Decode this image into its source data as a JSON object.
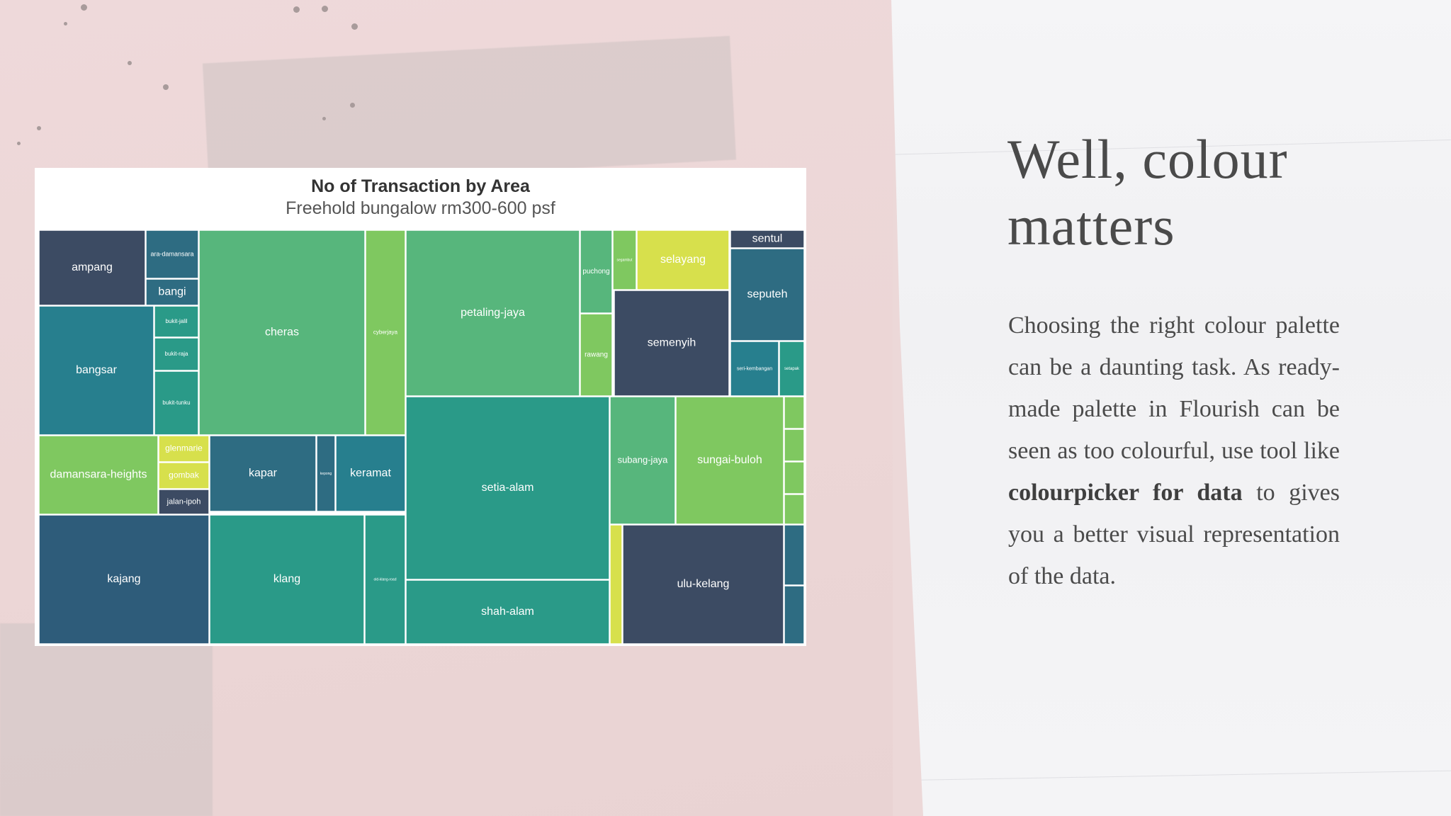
{
  "slide": {
    "heading": "Well, colour matters",
    "body_before": "Choosing the right colour palette can be a daunting task. As ready-made palette in Flourish can be seen as too colourful, use tool like ",
    "body_bold": "colourpicker for data",
    "body_after": " to gives you a better visual representation of the data."
  },
  "colors": {
    "dark_slate": "#3c4b63",
    "slate_teal": "#2e6c82",
    "teal_blue": "#277f8e",
    "teal": "#2a9a88",
    "green": "#57b67c",
    "light_green": "#7fc860",
    "yellow": "#d7e04c"
  },
  "chart_data": {
    "type": "treemap",
    "title": "No of Transaction by Area",
    "subtitle": "Freehold bungalow rm300-600 psf",
    "cells": [
      {
        "name": "ampang",
        "color": "#3c4b63"
      },
      {
        "name": "ara-damansara",
        "color": "#2e6c82"
      },
      {
        "name": "bangi",
        "color": "#2e6c82"
      },
      {
        "name": "bangsar",
        "color": "#277f8e"
      },
      {
        "name": "bukit-jalil",
        "color": "#2a9a88"
      },
      {
        "name": "bukit-raja",
        "color": "#2a9a88"
      },
      {
        "name": "bukit-tunku",
        "color": "#2a9a88"
      },
      {
        "name": "cheras",
        "color": "#57b67c"
      },
      {
        "name": "cyberjaya",
        "color": "#7fc860"
      },
      {
        "name": "damansara-heights",
        "color": "#7fc860"
      },
      {
        "name": "glenmarie",
        "color": "#d7e04c"
      },
      {
        "name": "gombak",
        "color": "#d7e04c"
      },
      {
        "name": "jalan-ipoh",
        "color": "#3c4b63"
      },
      {
        "name": "kapar",
        "color": "#2e6c82"
      },
      {
        "name": "kepong",
        "color": "#2e6c82"
      },
      {
        "name": "keramat",
        "color": "#277f8e"
      },
      {
        "name": "kajang",
        "color": "#2e5c7a"
      },
      {
        "name": "klang",
        "color": "#2a9a88"
      },
      {
        "name": "old-klang-road",
        "color": "#2a9a88"
      },
      {
        "name": "petaling-jaya",
        "color": "#57b67c"
      },
      {
        "name": "puchong",
        "color": "#57b67c"
      },
      {
        "name": "rawang",
        "color": "#7fc860"
      },
      {
        "name": "segambut",
        "color": "#7fc860"
      },
      {
        "name": "selayang",
        "color": "#d7e04c"
      },
      {
        "name": "semenyih",
        "color": "#3c4b63"
      },
      {
        "name": "sentul",
        "color": "#3c4b63"
      },
      {
        "name": "seputeh",
        "color": "#2e6c82"
      },
      {
        "name": "seri-kembangan",
        "color": "#277f8e"
      },
      {
        "name": "setapak",
        "color": "#2a9a88"
      },
      {
        "name": "setia-alam",
        "color": "#2a9a88"
      },
      {
        "name": "shah-alam",
        "color": "#2a9a88"
      },
      {
        "name": "subang-jaya",
        "color": "#57b67c"
      },
      {
        "name": "sungai-buloh",
        "color": "#7fc860"
      },
      {
        "name": "ulu-kelang",
        "color": "#3c4b63"
      },
      {
        "name": "",
        "color": "#7fc860"
      },
      {
        "name": "",
        "color": "#7fc860"
      },
      {
        "name": "",
        "color": "#7fc860"
      },
      {
        "name": "",
        "color": "#7fc860"
      },
      {
        "name": "",
        "color": "#d7e04c"
      },
      {
        "name": "",
        "color": "#2e6c82"
      },
      {
        "name": "",
        "color": "#2e6c82"
      },
      {
        "name": "",
        "color": "#2e6c82"
      }
    ]
  }
}
